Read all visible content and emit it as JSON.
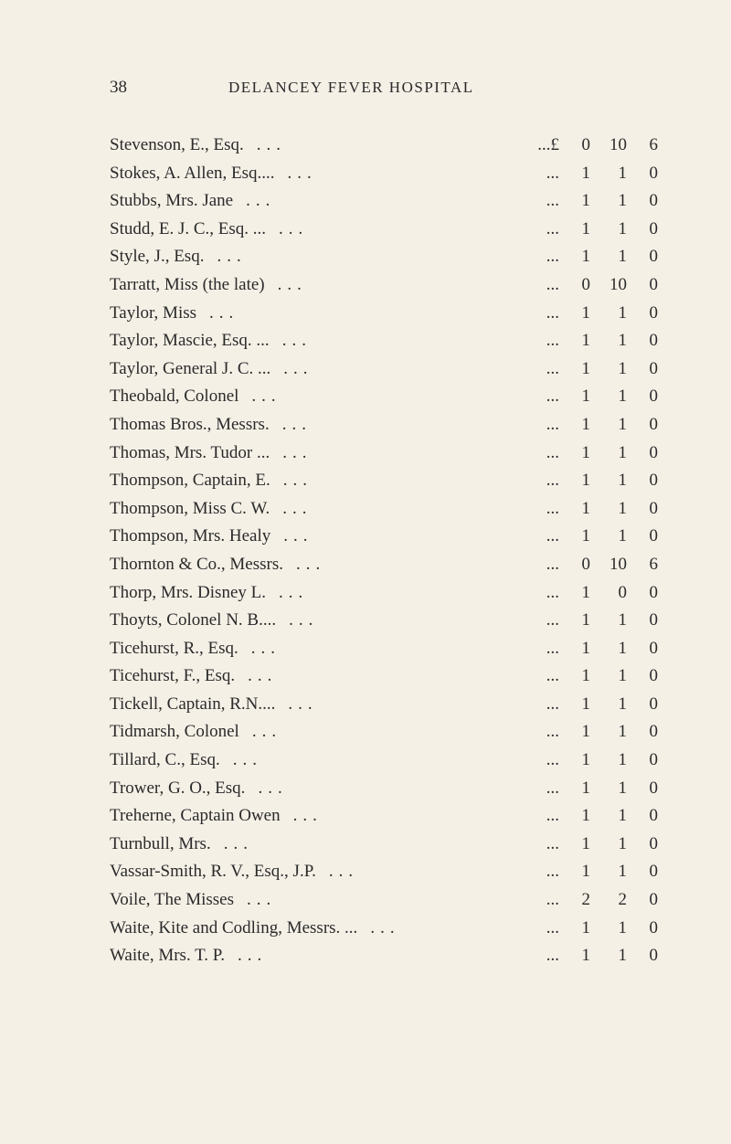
{
  "header": {
    "page_number": "38",
    "title": "DELANCEY FEVER HOSPITAL"
  },
  "currency_prefix": "...£",
  "entries": [
    {
      "name": "Stevenson, E., Esq.",
      "amount": [
        "0",
        "10",
        "6"
      ],
      "has_prefix": true
    },
    {
      "name": "Stokes, A. Allen, Esq....",
      "amount": [
        "1",
        "1",
        "0"
      ],
      "has_prefix": false
    },
    {
      "name": "Stubbs, Mrs. Jane",
      "amount": [
        "1",
        "1",
        "0"
      ],
      "has_prefix": false
    },
    {
      "name": "Studd, E. J. C., Esq. ...",
      "amount": [
        "1",
        "1",
        "0"
      ],
      "has_prefix": false
    },
    {
      "name": "Style, J., Esq.",
      "amount": [
        "1",
        "1",
        "0"
      ],
      "has_prefix": false
    },
    {
      "name": "Tarratt, Miss (the late)",
      "amount": [
        "0",
        "10",
        "0"
      ],
      "has_prefix": false
    },
    {
      "name": "Taylor, Miss",
      "amount": [
        "1",
        "1",
        "0"
      ],
      "has_prefix": false
    },
    {
      "name": "Taylor, Mascie, Esq. ...",
      "amount": [
        "1",
        "1",
        "0"
      ],
      "has_prefix": false
    },
    {
      "name": "Taylor, General J. C. ...",
      "amount": [
        "1",
        "1",
        "0"
      ],
      "has_prefix": false
    },
    {
      "name": "Theobald, Colonel",
      "amount": [
        "1",
        "1",
        "0"
      ],
      "has_prefix": false
    },
    {
      "name": "Thomas Bros., Messrs.",
      "amount": [
        "1",
        "1",
        "0"
      ],
      "has_prefix": false
    },
    {
      "name": "Thomas, Mrs. Tudor ...",
      "amount": [
        "1",
        "1",
        "0"
      ],
      "has_prefix": false
    },
    {
      "name": "Thompson, Captain, E.",
      "amount": [
        "1",
        "1",
        "0"
      ],
      "has_prefix": false
    },
    {
      "name": "Thompson, Miss C. W.",
      "amount": [
        "1",
        "1",
        "0"
      ],
      "has_prefix": false
    },
    {
      "name": "Thompson, Mrs. Healy",
      "amount": [
        "1",
        "1",
        "0"
      ],
      "has_prefix": false
    },
    {
      "name": "Thornton & Co., Messrs.",
      "amount": [
        "0",
        "10",
        "6"
      ],
      "has_prefix": false
    },
    {
      "name": "Thorp, Mrs. Disney L.",
      "amount": [
        "1",
        "0",
        "0"
      ],
      "has_prefix": false
    },
    {
      "name": "Thoyts, Colonel N. B....",
      "amount": [
        "1",
        "1",
        "0"
      ],
      "has_prefix": false
    },
    {
      "name": "Ticehurst, R., Esq.",
      "amount": [
        "1",
        "1",
        "0"
      ],
      "has_prefix": false
    },
    {
      "name": "Ticehurst, F., Esq.",
      "amount": [
        "1",
        "1",
        "0"
      ],
      "has_prefix": false
    },
    {
      "name": "Tickell, Captain, R.N....",
      "amount": [
        "1",
        "1",
        "0"
      ],
      "has_prefix": false
    },
    {
      "name": "Tidmarsh, Colonel",
      "amount": [
        "1",
        "1",
        "0"
      ],
      "has_prefix": false
    },
    {
      "name": "Tillard, C., Esq.",
      "amount": [
        "1",
        "1",
        "0"
      ],
      "has_prefix": false
    },
    {
      "name": "Trower, G. O., Esq.",
      "amount": [
        "1",
        "1",
        "0"
      ],
      "has_prefix": false
    },
    {
      "name": "Treherne, Captain Owen",
      "amount": [
        "1",
        "1",
        "0"
      ],
      "has_prefix": false
    },
    {
      "name": "Turnbull, Mrs.",
      "amount": [
        "1",
        "1",
        "0"
      ],
      "has_prefix": false
    },
    {
      "name": "Vassar-Smith, R. V., Esq., J.P.",
      "amount": [
        "1",
        "1",
        "0"
      ],
      "has_prefix": false
    },
    {
      "name": "Voile, The Misses",
      "amount": [
        "2",
        "2",
        "0"
      ],
      "has_prefix": false
    },
    {
      "name": "Waite, Kite and Codling, Messrs. ...",
      "amount": [
        "1",
        "1",
        "0"
      ],
      "has_prefix": false
    },
    {
      "name": "Waite, Mrs. T. P.",
      "amount": [
        "1",
        "1",
        "0"
      ],
      "has_prefix": false
    }
  ]
}
